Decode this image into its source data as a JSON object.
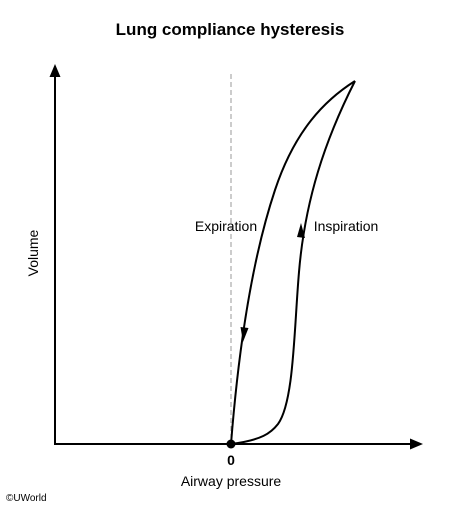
{
  "chart_data": {
    "type": "line",
    "title": "Lung compliance hysteresis",
    "xlabel": "Airway pressure",
    "ylabel": "Volume",
    "x_ticks": [
      "0"
    ],
    "series": [
      {
        "name": "Inspiration"
      },
      {
        "name": "Expiration"
      }
    ]
  },
  "credit": "©UWorld"
}
